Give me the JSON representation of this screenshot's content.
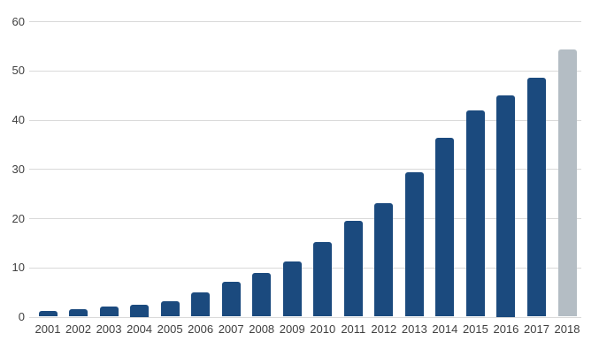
{
  "chart_data": {
    "type": "bar",
    "title": "",
    "xlabel": "",
    "ylabel": "",
    "categories": [
      "2001",
      "2002",
      "2003",
      "2004",
      "2005",
      "2006",
      "2007",
      "2008",
      "2009",
      "2010",
      "2011",
      "2012",
      "2013",
      "2014",
      "2015",
      "2016",
      "2017",
      "2018"
    ],
    "values": [
      1.2,
      1.6,
      2.0,
      2.5,
      3.1,
      4.9,
      7.0,
      8.8,
      11.2,
      15.2,
      19.4,
      23.0,
      29.3,
      36.3,
      41.8,
      45.0,
      48.5,
      54.2
    ],
    "bar_colors": [
      "#1b4a7e",
      "#1b4a7e",
      "#1b4a7e",
      "#1b4a7e",
      "#1b4a7e",
      "#1b4a7e",
      "#1b4a7e",
      "#1b4a7e",
      "#1b4a7e",
      "#1b4a7e",
      "#1b4a7e",
      "#1b4a7e",
      "#1b4a7e",
      "#1b4a7e",
      "#1b4a7e",
      "#1b4a7e",
      "#1b4a7e",
      "#b4bdc4"
    ],
    "highlighted_category": "2018",
    "ylim": [
      0,
      60
    ],
    "yticks": [
      0,
      10,
      20,
      30,
      40,
      50,
      60
    ],
    "grid": true,
    "legend": "none",
    "colors": {
      "bar_default": "#1b4a7e",
      "bar_highlight": "#b4bdc4",
      "gridline": "#d9d9d9",
      "axis_text": "#404040",
      "background": "#ffffff"
    }
  }
}
